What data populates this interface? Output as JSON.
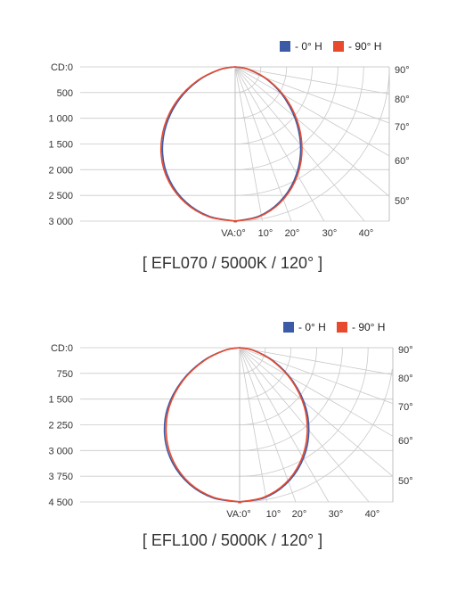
{
  "chart_data": [
    {
      "type": "polar",
      "title": "[ EFL070 / 5000K / 120° ]",
      "legend": [
        {
          "name": "- 0° H",
          "color": "#3c5aa6"
        },
        {
          "name": "- 90° H",
          "color": "#e84a2e"
        }
      ],
      "legend_position": "top-right",
      "y_ticks": [
        "CD:0",
        "500",
        "1 000",
        "1 500",
        "2 000",
        "2 500",
        "3 000"
      ],
      "ylim": [
        0,
        3000
      ],
      "angle_ticks_bottom": [
        "VA:0°",
        "10°",
        "20°",
        "30°",
        "40°"
      ],
      "angle_ticks_right": [
        "90°",
        "80°",
        "70°",
        "60°",
        "50°"
      ],
      "series": [
        {
          "name": "- 0° H",
          "angles": [
            0,
            10,
            20,
            30,
            40,
            50,
            60,
            70,
            80,
            90
          ],
          "values": [
            3000,
            2950,
            2800,
            2550,
            2200,
            1750,
            1250,
            750,
            300,
            0
          ]
        },
        {
          "name": "- 90° H",
          "angles": [
            0,
            10,
            20,
            30,
            40,
            50,
            60,
            70,
            80,
            90
          ],
          "values": [
            3000,
            2960,
            2820,
            2580,
            2240,
            1800,
            1300,
            780,
            320,
            0
          ]
        }
      ]
    },
    {
      "type": "polar",
      "title": "[ EFL100 / 5000K / 120° ]",
      "legend": [
        {
          "name": "- 0° H",
          "color": "#3c5aa6"
        },
        {
          "name": "- 90° H",
          "color": "#e84a2e"
        }
      ],
      "legend_position": "top-right",
      "y_ticks": [
        "CD:0",
        "750",
        "1 500",
        "2 250",
        "3 000",
        "3 750",
        "4 500"
      ],
      "ylim": [
        0,
        4500
      ],
      "angle_ticks_bottom": [
        "VA:0°",
        "10°",
        "20°",
        "30°",
        "40°"
      ],
      "angle_ticks_right": [
        "90°",
        "80°",
        "70°",
        "60°",
        "50°"
      ],
      "series": [
        {
          "name": "- 0° H",
          "angles": [
            0,
            10,
            20,
            30,
            40,
            50,
            60,
            70,
            80,
            90
          ],
          "values": [
            4500,
            4450,
            4250,
            3900,
            3400,
            2750,
            1950,
            1150,
            450,
            0
          ]
        },
        {
          "name": "- 90° H",
          "angles": [
            0,
            10,
            20,
            30,
            40,
            50,
            60,
            70,
            80,
            90
          ],
          "values": [
            4500,
            4430,
            4220,
            3850,
            3330,
            2680,
            1900,
            1100,
            430,
            0
          ]
        }
      ]
    }
  ]
}
